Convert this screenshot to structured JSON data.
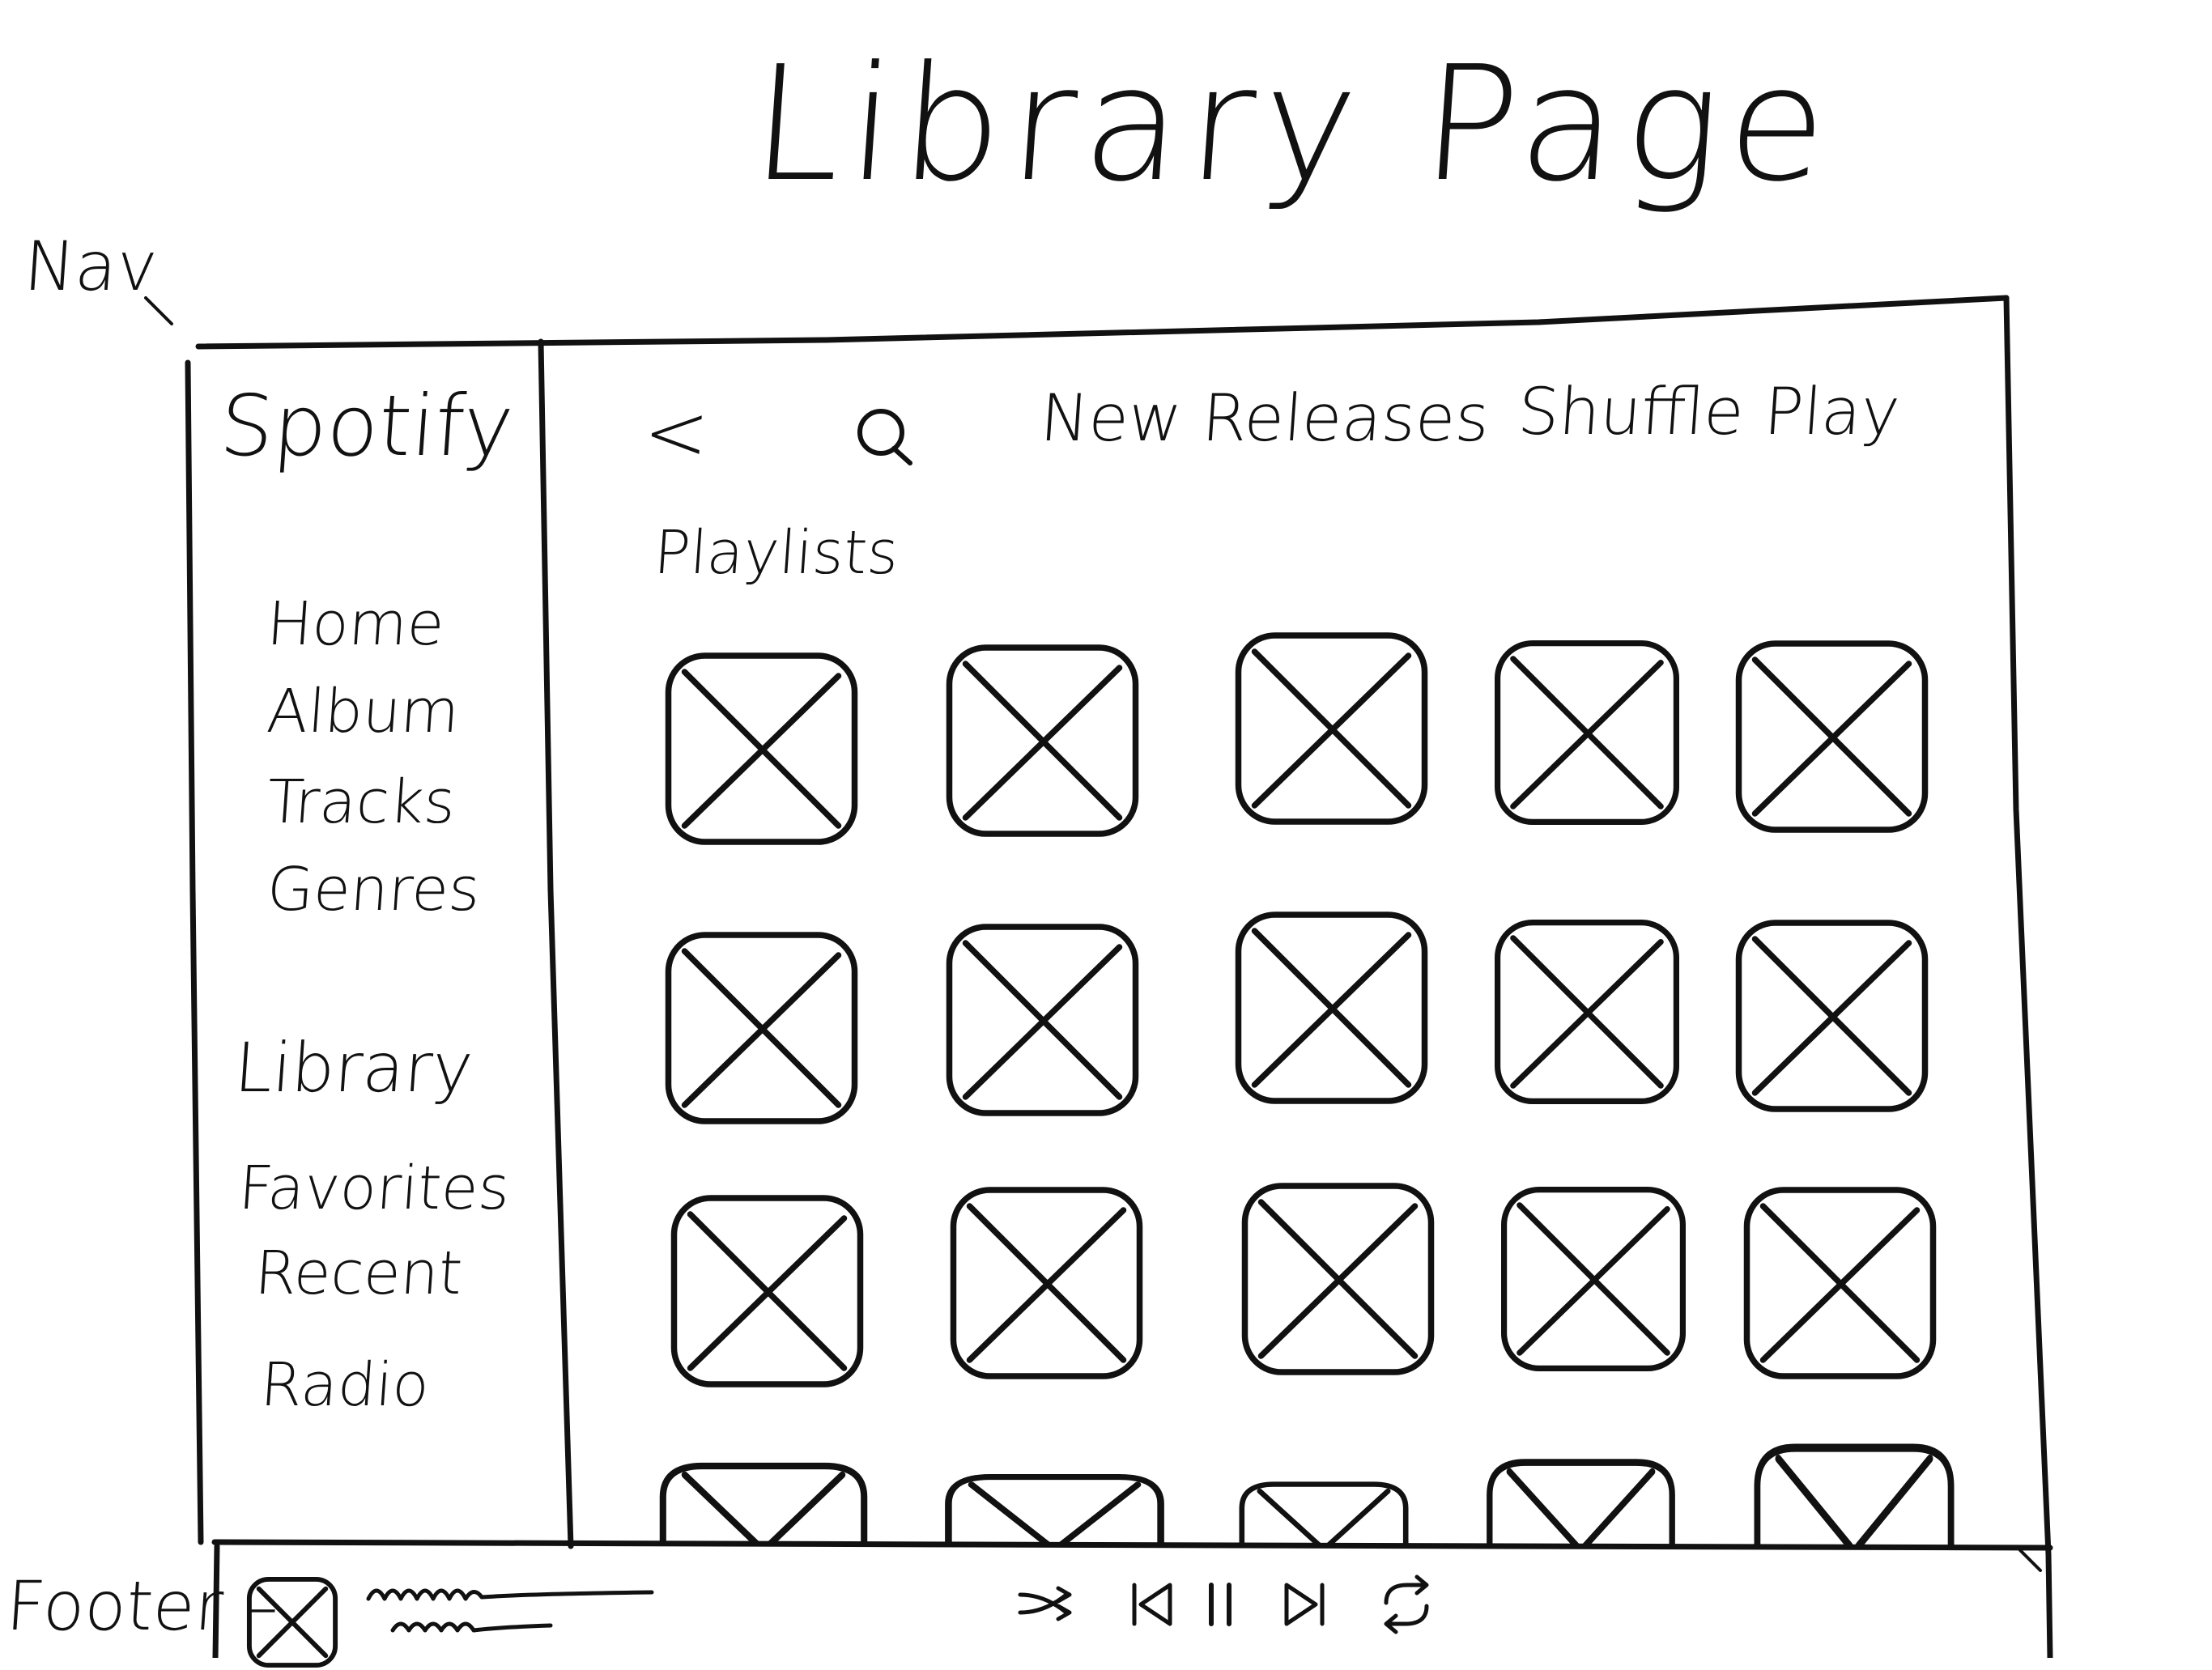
{
  "page_title": "Library Page",
  "annotations": {
    "nav": "Nav",
    "footer": "Footer"
  },
  "sidebar": {
    "brand": "Spotify",
    "primary_items": [
      {
        "label": "Home"
      },
      {
        "label": "Album"
      },
      {
        "label": "Tracks"
      },
      {
        "label": "Genres"
      }
    ],
    "library_heading": "Library",
    "library_items": [
      {
        "label": "Favorites"
      },
      {
        "label": "Recent"
      },
      {
        "label": "Radio"
      }
    ]
  },
  "topbar": {
    "back_icon": "back-chevron-icon",
    "search_icon": "search-icon",
    "new_releases": "New Releases",
    "shuffle_play": "Shuffle Play"
  },
  "main": {
    "section_heading": "Playlists",
    "tile_placeholder": "image-placeholder-icon",
    "rows_visible": 3,
    "columns": 5,
    "partial_row": true
  },
  "footer": {
    "thumbnail": "image-placeholder-icon",
    "controls": [
      {
        "name": "shuffle-icon"
      },
      {
        "name": "previous-icon"
      },
      {
        "name": "pause-icon"
      },
      {
        "name": "next-icon"
      },
      {
        "name": "repeat-icon"
      }
    ]
  }
}
